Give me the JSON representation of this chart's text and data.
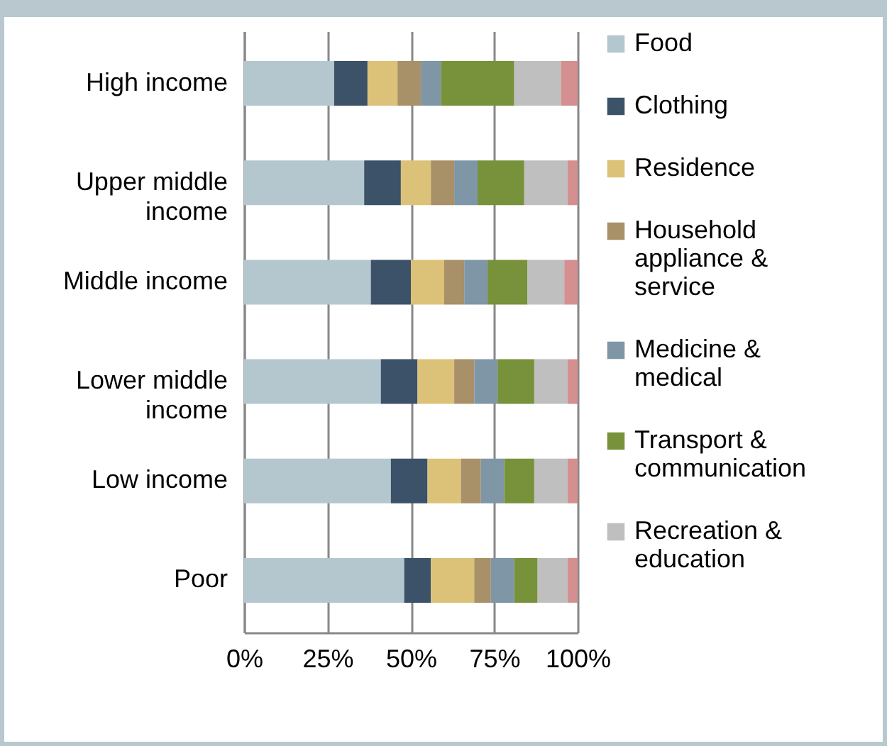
{
  "chart_data": {
    "type": "bar",
    "orientation": "horizontal",
    "stacked": true,
    "categories": [
      "High income",
      "Upper middle income",
      "Middle income",
      "Lower middle income",
      "Low income",
      "Poor"
    ],
    "series": [
      {
        "name": "Food",
        "color": "#b4c7cf",
        "values": [
          27,
          36,
          38,
          41,
          44,
          48
        ]
      },
      {
        "name": "Clothing",
        "color": "#3b5268",
        "values": [
          10,
          11,
          12,
          11,
          11,
          8
        ]
      },
      {
        "name": "Residence",
        "color": "#dcc278",
        "values": [
          9,
          9,
          10,
          11,
          10,
          13
        ]
      },
      {
        "name": "Household appliance & service",
        "color": "#a89068",
        "values": [
          7,
          7,
          6,
          6,
          6,
          5
        ]
      },
      {
        "name": "Medicine & medical",
        "color": "#7f96a6",
        "values": [
          6,
          7,
          7,
          7,
          7,
          7
        ]
      },
      {
        "name": "Transport & communication",
        "color": "#77923b",
        "values": [
          22,
          14,
          12,
          11,
          9,
          7
        ]
      },
      {
        "name": "Recreation & education",
        "color": "#bfbfbf",
        "values": [
          14,
          13,
          11,
          10,
          10,
          9
        ]
      },
      {
        "color": "#d49090",
        "values": [
          5,
          3,
          4,
          3,
          3,
          3
        ]
      }
    ],
    "xlim": [
      0,
      100
    ],
    "xticks": [
      {
        "value": 0,
        "label": "0%"
      },
      {
        "value": 25,
        "label": "25%"
      },
      {
        "value": 50,
        "label": "50%"
      },
      {
        "value": 75,
        "label": "75%"
      },
      {
        "value": 100,
        "label": "100%"
      }
    ],
    "grid": "x",
    "legend": "right"
  }
}
